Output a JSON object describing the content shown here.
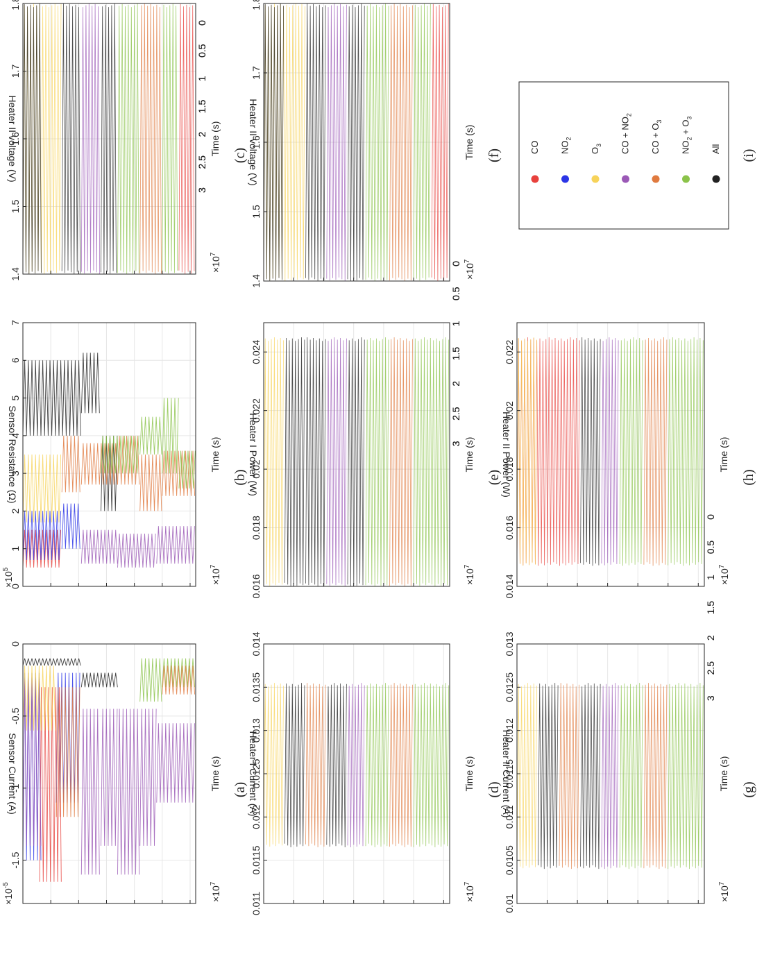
{
  "figure": {
    "time_axis_label": "Time (s)",
    "time_multiplier": "×10",
    "time_multiplier_exp": "7",
    "time_ticks": [
      0,
      0.5,
      1,
      1.5,
      2,
      2.5,
      3
    ],
    "time_range": [
      0,
      3.1
    ]
  },
  "legend": {
    "items": [
      {
        "label": "CO",
        "sub": "",
        "color": "#e8413c"
      },
      {
        "label": "NO",
        "sub": "2",
        "color": "#2b35e6"
      },
      {
        "label": "O",
        "sub": "3",
        "color": "#f7d35a"
      },
      {
        "label": "CO + NO",
        "sub": "2",
        "color": "#9b59b6"
      },
      {
        "label": "CO + O",
        "sub": "3",
        "color": "#e07a3f"
      },
      {
        "label": "NO",
        "sub": "2",
        "suffix": " + O",
        "sub2": "3",
        "color": "#8bc34a"
      },
      {
        "label": "All",
        "sub": "",
        "color": "#222222"
      }
    ]
  },
  "chart_data": [
    {
      "id": "a",
      "type": "line",
      "caption": "(a)",
      "ylabel": "Sensor Current (A)",
      "y_multiplier": "×10",
      "y_multiplier_exp": "-5",
      "ylim": [
        -1.8,
        0
      ],
      "yticks": [
        0,
        -0.5,
        -1,
        -1.5
      ],
      "ytick_labels": [
        "0",
        "-0.5",
        "-1",
        "-1.5"
      ],
      "segments": [
        {
          "series": "All",
          "from": 0.0,
          "to": 1.05,
          "lo": -0.15,
          "hi": -0.1
        },
        {
          "series": "All",
          "from": 1.05,
          "to": 1.7,
          "lo": -0.3,
          "hi": -0.2
        },
        {
          "series": "NO2",
          "from": 0.0,
          "to": 0.35,
          "lo": -1.5,
          "hi": -0.2
        },
        {
          "series": "CO",
          "from": 0.3,
          "to": 0.7,
          "lo": -1.65,
          "hi": -0.3
        },
        {
          "series": "NO2",
          "from": 0.6,
          "to": 1.05,
          "lo": -1.1,
          "hi": -0.2
        },
        {
          "series": "CO + NO2",
          "from": 0.0,
          "to": 0.35,
          "lo": -1.4,
          "hi": -0.25
        },
        {
          "series": "CO + O3",
          "from": 0.6,
          "to": 1.05,
          "lo": -1.2,
          "hi": -0.3
        },
        {
          "series": "CO + NO2",
          "from": 1.05,
          "to": 1.4,
          "lo": -1.6,
          "hi": -0.45
        },
        {
          "series": "CO + NO2",
          "from": 1.4,
          "to": 1.7,
          "lo": -1.4,
          "hi": -0.45
        },
        {
          "series": "CO + NO2",
          "from": 1.7,
          "to": 2.1,
          "lo": -1.6,
          "hi": -0.45
        },
        {
          "series": "CO + NO2",
          "from": 2.1,
          "to": 2.4,
          "lo": -1.4,
          "hi": -0.45
        },
        {
          "series": "CO + NO2",
          "from": 2.4,
          "to": 3.1,
          "lo": -1.1,
          "hi": -0.55
        },
        {
          "series": "NO2 + O3",
          "from": 2.1,
          "to": 2.5,
          "lo": -0.4,
          "hi": -0.1
        },
        {
          "series": "NO2 + O3",
          "from": 2.5,
          "to": 3.1,
          "lo": -0.3,
          "hi": -0.1
        },
        {
          "series": "CO + O3",
          "from": 2.5,
          "to": 3.1,
          "lo": -0.35,
          "hi": -0.15
        },
        {
          "series": "O3",
          "from": 0.0,
          "to": 0.6,
          "lo": -0.6,
          "hi": -0.15
        }
      ]
    },
    {
      "id": "b",
      "type": "line",
      "caption": "(b)",
      "ylabel": "Sensor Resistance (Ω)",
      "y_multiplier": "×10",
      "y_multiplier_exp": "5",
      "ylim": [
        0,
        7
      ],
      "yticks": [
        0,
        1,
        2,
        3,
        4,
        5,
        6,
        7
      ],
      "ytick_labels": [
        "0",
        "1",
        "2",
        "3",
        "4",
        "5",
        "6",
        "7"
      ],
      "segments": [
        {
          "series": "All",
          "from": 0.0,
          "to": 1.05,
          "lo": 4.0,
          "hi": 6.0
        },
        {
          "series": "All",
          "from": 1.05,
          "to": 1.4,
          "lo": 4.6,
          "hi": 6.2
        },
        {
          "series": "All",
          "from": 1.4,
          "to": 1.7,
          "lo": 2.0,
          "hi": 4.0
        },
        {
          "series": "CO",
          "from": 0.0,
          "to": 0.7,
          "lo": 0.5,
          "hi": 1.5
        },
        {
          "series": "NO2",
          "from": 0.0,
          "to": 0.7,
          "lo": 0.7,
          "hi": 2.0
        },
        {
          "series": "NO2",
          "from": 0.7,
          "to": 1.05,
          "lo": 1.0,
          "hi": 2.2
        },
        {
          "series": "O3",
          "from": 0.0,
          "to": 0.7,
          "lo": 1.7,
          "hi": 3.5
        },
        {
          "series": "CO + NO2",
          "from": 1.05,
          "to": 1.7,
          "lo": 0.6,
          "hi": 1.5
        },
        {
          "series": "CO + NO2",
          "from": 1.7,
          "to": 2.4,
          "lo": 0.5,
          "hi": 1.4
        },
        {
          "series": "CO + NO2",
          "from": 2.4,
          "to": 3.1,
          "lo": 0.6,
          "hi": 1.6
        },
        {
          "series": "CO + O3",
          "from": 0.7,
          "to": 1.05,
          "lo": 2.5,
          "hi": 4.0
        },
        {
          "series": "CO + O3",
          "from": 1.05,
          "to": 1.7,
          "lo": 2.7,
          "hi": 3.8
        },
        {
          "series": "CO + O3",
          "from": 1.7,
          "to": 2.1,
          "lo": 2.7,
          "hi": 4.0
        },
        {
          "series": "CO + O3",
          "from": 2.1,
          "to": 2.5,
          "lo": 2.0,
          "hi": 3.5
        },
        {
          "series": "CO + O3",
          "from": 2.5,
          "to": 3.1,
          "lo": 2.4,
          "hi": 3.6
        },
        {
          "series": "NO2 + O3",
          "from": 1.4,
          "to": 2.1,
          "lo": 3.0,
          "hi": 4.0
        },
        {
          "series": "NO2 + O3",
          "from": 2.1,
          "to": 2.5,
          "lo": 3.5,
          "hi": 4.5
        },
        {
          "series": "NO2 + O3",
          "from": 2.5,
          "to": 2.8,
          "lo": 3.0,
          "hi": 5.0
        },
        {
          "series": "NO2 + O3",
          "from": 2.8,
          "to": 3.1,
          "lo": 2.6,
          "hi": 3.6
        }
      ]
    },
    {
      "id": "c",
      "type": "line",
      "caption": "(c)",
      "ylabel": "Heater II voltage (V)",
      "ylim": [
        1.4,
        1.8
      ],
      "yticks": [
        1.4,
        1.5,
        1.6,
        1.7,
        1.8
      ],
      "ytick_labels": [
        "1.4",
        "1.5",
        "1.6",
        "1.7",
        "1.8"
      ],
      "dense_band": {
        "lo": 1.4,
        "hi": 1.8
      },
      "bands": [
        {
          "series": "O3",
          "from": 0.0,
          "to": 0.7
        },
        {
          "series": "All",
          "from": 0.0,
          "to": 0.35
        },
        {
          "series": "All",
          "from": 0.7,
          "to": 1.05
        },
        {
          "series": "CO + NO2",
          "from": 1.05,
          "to": 1.4
        },
        {
          "series": "All",
          "from": 1.4,
          "to": 1.7
        },
        {
          "series": "NO2 + O3",
          "from": 1.7,
          "to": 2.1
        },
        {
          "series": "CO + O3",
          "from": 2.1,
          "to": 2.5
        },
        {
          "series": "NO2 + O3",
          "from": 2.5,
          "to": 2.8
        },
        {
          "series": "CO",
          "from": 2.8,
          "to": 3.1
        }
      ]
    },
    {
      "id": "d",
      "type": "line",
      "caption": "(d)",
      "ylabel": "Heater I Current (A)",
      "ylim": [
        0.011,
        0.014
      ],
      "yticks": [
        0.011,
        0.0115,
        0.012,
        0.0125,
        0.013,
        0.0135,
        0.014
      ],
      "ytick_labels": [
        "0.011",
        "0.0115",
        "0.012",
        "0.0125",
        "0.013",
        "0.0135",
        "0.014"
      ],
      "dense_band": {
        "lo": 0.01165,
        "hi": 0.01355
      },
      "bands": [
        {
          "series": "O3",
          "from": 0.0,
          "to": 0.35
        },
        {
          "series": "All",
          "from": 0.35,
          "to": 0.7
        },
        {
          "series": "CO + O3",
          "from": 0.7,
          "to": 1.05
        },
        {
          "series": "All",
          "from": 1.05,
          "to": 1.4
        },
        {
          "series": "CO + NO2",
          "from": 1.4,
          "to": 1.7
        },
        {
          "series": "NO2 + O3",
          "from": 1.7,
          "to": 2.1
        },
        {
          "series": "CO + O3",
          "from": 2.1,
          "to": 2.5
        },
        {
          "series": "NO2 + O3",
          "from": 2.5,
          "to": 3.1
        }
      ]
    },
    {
      "id": "e",
      "type": "line",
      "caption": "(e)",
      "ylabel": "Heater I Power (W)",
      "ylim": [
        0.016,
        0.025
      ],
      "yticks": [
        0.016,
        0.018,
        0.02,
        0.022,
        0.024
      ],
      "ytick_labels": [
        "0.016",
        "0.018",
        "0.02",
        "0.022",
        "0.024"
      ],
      "dense_band": {
        "lo": 0.016,
        "hi": 0.0245
      },
      "bands": [
        {
          "series": "O3",
          "from": 0.0,
          "to": 0.35
        },
        {
          "series": "All",
          "from": 0.35,
          "to": 0.7
        },
        {
          "series": "All",
          "from": 0.7,
          "to": 1.05
        },
        {
          "series": "CO + NO2",
          "from": 1.05,
          "to": 1.4
        },
        {
          "series": "All",
          "from": 1.4,
          "to": 1.7
        },
        {
          "series": "NO2 + O3",
          "from": 1.7,
          "to": 2.1
        },
        {
          "series": "CO + O3",
          "from": 2.1,
          "to": 2.5
        },
        {
          "series": "NO2 + O3",
          "from": 2.5,
          "to": 3.1
        }
      ]
    },
    {
      "id": "f",
      "type": "line",
      "caption": "(f)",
      "ylabel": "Heater II voltage (V)",
      "ylim": [
        1.4,
        1.8
      ],
      "yticks": [
        1.4,
        1.5,
        1.6,
        1.7,
        1.8
      ],
      "ytick_labels": [
        "1.4",
        "1.5",
        "1.6",
        "1.7",
        "1.8"
      ],
      "dense_band": {
        "lo": 1.4,
        "hi": 1.8
      },
      "bands": [
        {
          "series": "O3",
          "from": 0.0,
          "to": 0.7
        },
        {
          "series": "All",
          "from": 0.0,
          "to": 0.35
        },
        {
          "series": "All",
          "from": 0.7,
          "to": 1.05
        },
        {
          "series": "CO + NO2",
          "from": 1.05,
          "to": 1.4
        },
        {
          "series": "All",
          "from": 1.4,
          "to": 1.7
        },
        {
          "series": "NO2 + O3",
          "from": 1.7,
          "to": 2.1
        },
        {
          "series": "CO + O3",
          "from": 2.1,
          "to": 2.5
        },
        {
          "series": "NO2 + O3",
          "from": 2.5,
          "to": 2.8
        },
        {
          "series": "CO",
          "from": 2.8,
          "to": 3.1
        }
      ]
    },
    {
      "id": "g",
      "type": "line",
      "caption": "(g)",
      "ylabel": "Heater II Current (A)",
      "ylim": [
        0.01,
        0.013
      ],
      "yticks": [
        0.01,
        0.0105,
        0.011,
        0.0115,
        0.012,
        0.0125,
        0.013
      ],
      "ytick_labels": [
        "0.01",
        "0.0105",
        "0.011",
        "0.0115",
        "0.012",
        "0.0125",
        "0.013"
      ],
      "dense_band": {
        "lo": 0.0104,
        "hi": 0.01255
      },
      "bands": [
        {
          "series": "O3",
          "from": 0.0,
          "to": 0.35
        },
        {
          "series": "All",
          "from": 0.35,
          "to": 0.7
        },
        {
          "series": "CO + O3",
          "from": 0.7,
          "to": 1.05
        },
        {
          "series": "All",
          "from": 1.05,
          "to": 1.4
        },
        {
          "series": "CO + NO2",
          "from": 1.4,
          "to": 1.7
        },
        {
          "series": "NO2 + O3",
          "from": 1.7,
          "to": 2.1
        },
        {
          "series": "CO + O3",
          "from": 2.1,
          "to": 2.5
        },
        {
          "series": "NO2 + O3",
          "from": 2.5,
          "to": 3.1
        }
      ]
    },
    {
      "id": "h",
      "type": "line",
      "caption": "(h)",
      "ylabel": "Heater II Power (W)",
      "ylim": [
        0.014,
        0.023
      ],
      "yticks": [
        0.014,
        0.016,
        0.018,
        0.02,
        0.022
      ],
      "ytick_labels": [
        "0.014",
        "0.016",
        "0.018",
        "0.02",
        "0.022"
      ],
      "dense_band": {
        "lo": 0.0147,
        "hi": 0.0225
      },
      "bands": [
        {
          "series": "CO",
          "from": 0.0,
          "to": 1.05
        },
        {
          "series": "O3",
          "from": 0.0,
          "to": 0.35
        },
        {
          "series": "All",
          "from": 1.05,
          "to": 1.4
        },
        {
          "series": "CO + NO2",
          "from": 1.4,
          "to": 1.7
        },
        {
          "series": "NO2 + O3",
          "from": 1.7,
          "to": 2.1
        },
        {
          "series": "CO + O3",
          "from": 2.1,
          "to": 2.5
        },
        {
          "series": "NO2 + O3",
          "from": 2.5,
          "to": 3.1
        }
      ]
    }
  ],
  "legend_caption": "(i)"
}
